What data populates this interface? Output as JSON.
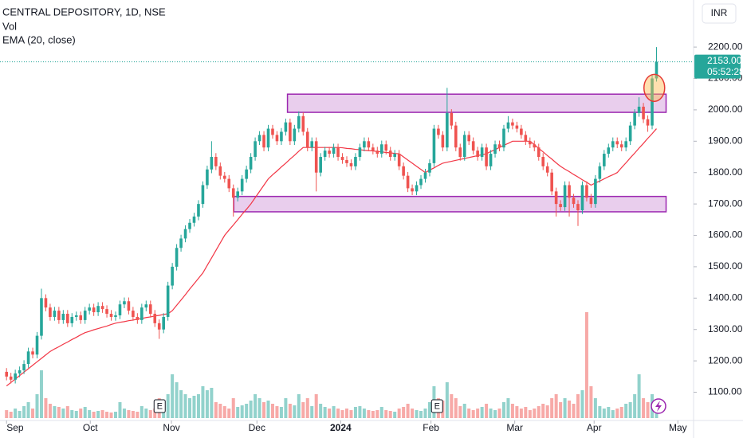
{
  "chart_data": {
    "type": "candlestick",
    "title": "CENTRAL DEPOSITORY, 1D, NSE",
    "currency": "INR",
    "xlim": [
      -1.5,
      157.5
    ],
    "ylim": [
      1010,
      2350
    ],
    "xticks": [
      {
        "value": 0,
        "label": "Sep"
      },
      {
        "value": 19.2,
        "label": "Oct"
      },
      {
        "value": 37.8,
        "label": "Nov"
      },
      {
        "value": 57.4,
        "label": "Dec"
      },
      {
        "value": 76.6,
        "label": "2024"
      },
      {
        "value": 97.3,
        "label": "Feb"
      },
      {
        "value": 116.5,
        "label": "Mar"
      },
      {
        "value": 134.7,
        "label": "Apr"
      },
      {
        "value": 153.9,
        "label": "May"
      }
    ],
    "yticks": [
      {
        "value": 1100,
        "label": "1100.00"
      },
      {
        "value": 1200,
        "label": "1200.00"
      },
      {
        "value": 1300,
        "label": "1300.00"
      },
      {
        "value": 1400,
        "label": "1400.00"
      },
      {
        "value": 1500,
        "label": "1500.00"
      },
      {
        "value": 1600,
        "label": "1600.00"
      },
      {
        "value": 1700,
        "label": "1700.00"
      },
      {
        "value": 1800,
        "label": "1800.00"
      },
      {
        "value": 1900,
        "label": "1900.00"
      },
      {
        "value": 2000,
        "label": "2000.00"
      },
      {
        "value": 2100,
        "label": "2100.00"
      },
      {
        "value": 2200,
        "label": "2200.00"
      }
    ],
    "up_color": "#26a69a",
    "down_color": "#ef5350",
    "candles": {
      "open": [
        1165,
        1150,
        1140,
        1160,
        1170,
        1190,
        1230,
        1220,
        1280,
        1400,
        1370,
        1340,
        1360,
        1330,
        1350,
        1320,
        1340,
        1345,
        1330,
        1360,
        1370,
        1355,
        1375,
        1365,
        1350,
        1340,
        1345,
        1380,
        1390,
        1360,
        1340,
        1330,
        1370,
        1380,
        1350,
        1320,
        1300,
        1340,
        1440,
        1500,
        1560,
        1590,
        1620,
        1640,
        1660,
        1700,
        1760,
        1810,
        1850,
        1820,
        1790,
        1780,
        1750,
        1720,
        1740,
        1780,
        1810,
        1850,
        1900,
        1920,
        1880,
        1940,
        1920,
        1900,
        1930,
        1960,
        1900,
        1940,
        1980,
        1930,
        1880,
        1900,
        1800,
        1850,
        1870,
        1860,
        1880,
        1850,
        1840,
        1830,
        1820,
        1850,
        1880,
        1900,
        1880,
        1870,
        1860,
        1890,
        1870,
        1850,
        1860,
        1820,
        1790,
        1750,
        1740,
        1760,
        1780,
        1800,
        1830,
        1940,
        1920,
        1880,
        1990,
        1950,
        1880,
        1850,
        1920,
        1900,
        1870,
        1850,
        1880,
        1820,
        1860,
        1890,
        1880,
        1940,
        1960,
        1950,
        1940,
        1920,
        1900,
        1890,
        1880,
        1850,
        1820,
        1800,
        1740,
        1700,
        1690,
        1760,
        1720,
        1700,
        1680,
        1760,
        1720,
        1700,
        1780,
        1820,
        1860,
        1880,
        1900,
        1890,
        1880,
        1900,
        1950,
        1990,
        2010,
        1970,
        1950,
        2100
      ],
      "high": [
        1177,
        1162,
        1172,
        1182,
        1202,
        1242,
        1242,
        1292,
        1430,
        1412,
        1382,
        1372,
        1372,
        1362,
        1362,
        1352,
        1357,
        1357,
        1372,
        1382,
        1382,
        1387,
        1387,
        1377,
        1362,
        1357,
        1392,
        1402,
        1402,
        1372,
        1352,
        1382,
        1392,
        1392,
        1362,
        1332,
        1352,
        1452,
        1512,
        1572,
        1602,
        1632,
        1652,
        1672,
        1712,
        1772,
        1822,
        1900,
        1862,
        1832,
        1802,
        1792,
        1762,
        1752,
        1792,
        1822,
        1862,
        1912,
        1932,
        1932,
        1952,
        1952,
        1932,
        1942,
        1972,
        1972,
        1952,
        1995,
        1992,
        1942,
        1912,
        1912,
        1862,
        1882,
        1882,
        1892,
        1892,
        1862,
        1852,
        1842,
        1862,
        1892,
        1912,
        1912,
        1892,
        1882,
        1902,
        1902,
        1882,
        1872,
        1872,
        1832,
        1802,
        1762,
        1772,
        1792,
        1812,
        1842,
        1952,
        1952,
        1932,
        2070,
        2002,
        1962,
        1892,
        1932,
        1932,
        1912,
        1882,
        1892,
        1892,
        1872,
        1902,
        1902,
        1952,
        1980,
        1972,
        1962,
        1952,
        1932,
        1912,
        1902,
        1892,
        1862,
        1832,
        1812,
        1752,
        1712,
        1772,
        1772,
        1732,
        1712,
        1772,
        1772,
        1732,
        1792,
        1832,
        1872,
        1892,
        1912,
        1912,
        1902,
        1912,
        1962,
        2002,
        2040,
        2022,
        1982,
        2112,
        2200
      ],
      "low": [
        1138,
        1128,
        1128,
        1148,
        1158,
        1178,
        1208,
        1208,
        1268,
        1358,
        1328,
        1328,
        1318,
        1318,
        1308,
        1308,
        1328,
        1318,
        1318,
        1348,
        1343,
        1343,
        1353,
        1338,
        1328,
        1328,
        1333,
        1368,
        1348,
        1328,
        1318,
        1318,
        1358,
        1338,
        1308,
        1270,
        1288,
        1328,
        1428,
        1488,
        1548,
        1578,
        1608,
        1628,
        1648,
        1688,
        1748,
        1798,
        1808,
        1778,
        1768,
        1738,
        1660,
        1708,
        1728,
        1768,
        1798,
        1838,
        1888,
        1868,
        1868,
        1908,
        1888,
        1888,
        1918,
        1888,
        1888,
        1928,
        1918,
        1868,
        1868,
        1740,
        1788,
        1838,
        1848,
        1848,
        1838,
        1828,
        1818,
        1808,
        1808,
        1838,
        1868,
        1868,
        1858,
        1848,
        1848,
        1858,
        1838,
        1838,
        1808,
        1778,
        1738,
        1728,
        1728,
        1748,
        1768,
        1788,
        1818,
        1908,
        1868,
        1868,
        1938,
        1868,
        1838,
        1838,
        1888,
        1858,
        1838,
        1838,
        1808,
        1808,
        1848,
        1868,
        1868,
        1928,
        1938,
        1928,
        1908,
        1888,
        1878,
        1868,
        1838,
        1808,
        1788,
        1728,
        1660,
        1678,
        1678,
        1660,
        1688,
        1630,
        1668,
        1708,
        1688,
        1688,
        1768,
        1808,
        1848,
        1868,
        1878,
        1868,
        1868,
        1888,
        1938,
        1978,
        1958,
        1930,
        1938,
        2090
      ],
      "close": [
        1150,
        1140,
        1160,
        1170,
        1190,
        1230,
        1220,
        1280,
        1400,
        1370,
        1340,
        1360,
        1330,
        1350,
        1320,
        1340,
        1345,
        1330,
        1360,
        1370,
        1355,
        1375,
        1365,
        1350,
        1340,
        1345,
        1380,
        1390,
        1360,
        1340,
        1330,
        1370,
        1380,
        1350,
        1320,
        1300,
        1340,
        1440,
        1500,
        1560,
        1590,
        1620,
        1640,
        1660,
        1700,
        1760,
        1810,
        1850,
        1820,
        1790,
        1780,
        1750,
        1720,
        1740,
        1780,
        1810,
        1850,
        1900,
        1920,
        1880,
        1940,
        1920,
        1900,
        1930,
        1960,
        1900,
        1940,
        1980,
        1930,
        1880,
        1900,
        1800,
        1850,
        1870,
        1860,
        1880,
        1850,
        1840,
        1830,
        1820,
        1850,
        1880,
        1900,
        1880,
        1870,
        1860,
        1890,
        1870,
        1850,
        1860,
        1820,
        1790,
        1750,
        1740,
        1760,
        1780,
        1800,
        1830,
        1940,
        1920,
        1880,
        1990,
        1950,
        1880,
        1850,
        1920,
        1900,
        1870,
        1850,
        1880,
        1820,
        1860,
        1890,
        1880,
        1940,
        1960,
        1950,
        1940,
        1920,
        1900,
        1890,
        1880,
        1850,
        1820,
        1800,
        1740,
        1700,
        1690,
        1760,
        1720,
        1700,
        1680,
        1760,
        1720,
        1700,
        1780,
        1820,
        1860,
        1880,
        1900,
        1890,
        1880,
        1900,
        1950,
        1990,
        2010,
        1970,
        1950,
        2100,
        2153
      ]
    },
    "ema": {
      "name": "EMA (20, close)",
      "color": "#f23645",
      "values": [
        1120,
        1131,
        1142,
        1153,
        1164,
        1175,
        1186,
        1197,
        1208,
        1219,
        1230,
        1238,
        1245,
        1253,
        1260,
        1268,
        1275,
        1283,
        1290,
        1294,
        1299,
        1303,
        1307,
        1311,
        1316,
        1320,
        1323,
        1325,
        1328,
        1330,
        1333,
        1335,
        1338,
        1340,
        1343,
        1345,
        1348,
        1350,
        1360,
        1377,
        1394,
        1411,
        1429,
        1446,
        1463,
        1480,
        1504,
        1528,
        1552,
        1576,
        1600,
        1617,
        1633,
        1650,
        1667,
        1683,
        1700,
        1720,
        1740,
        1760,
        1780,
        1793,
        1805,
        1818,
        1830,
        1843,
        1855,
        1868,
        1880,
        1880,
        1880,
        1880,
        1880,
        1880,
        1880,
        1880,
        1880,
        1879,
        1877,
        1876,
        1874,
        1873,
        1871,
        1870,
        1869,
        1867,
        1866,
        1864,
        1863,
        1861,
        1860,
        1850,
        1840,
        1830,
        1820,
        1810,
        1800,
        1808,
        1815,
        1823,
        1830,
        1833,
        1836,
        1839,
        1842,
        1845,
        1848,
        1851,
        1854,
        1857,
        1860,
        1867,
        1873,
        1880,
        1887,
        1893,
        1900,
        1900,
        1900,
        1900,
        1900,
        1889,
        1877,
        1866,
        1854,
        1843,
        1831,
        1820,
        1811,
        1803,
        1794,
        1786,
        1777,
        1769,
        1760,
        1767,
        1773,
        1780,
        1787,
        1793,
        1800,
        1816,
        1831,
        1847,
        1862,
        1878,
        1893,
        1909,
        1924,
        1940
      ]
    },
    "volume": {
      "name": "Vol",
      "lim": [
        0,
        140
      ],
      "values": [
        10,
        8,
        12,
        9,
        15,
        20,
        12,
        30,
        60,
        25,
        18,
        15,
        14,
        12,
        15,
        10,
        9,
        12,
        14,
        10,
        8,
        9,
        10,
        8,
        7,
        8,
        20,
        12,
        10,
        9,
        8,
        15,
        12,
        10,
        12,
        25,
        18,
        30,
        55,
        45,
        35,
        30,
        25,
        28,
        30,
        40,
        35,
        38,
        20,
        18,
        15,
        12,
        25,
        14,
        16,
        18,
        22,
        30,
        25,
        20,
        22,
        18,
        15,
        14,
        25,
        18,
        16,
        30,
        20,
        25,
        15,
        30,
        18,
        14,
        12,
        15,
        12,
        10,
        12,
        10,
        14,
        15,
        12,
        10,
        9,
        10,
        14,
        10,
        9,
        8,
        12,
        14,
        18,
        12,
        10,
        9,
        12,
        20,
        40,
        25,
        22,
        45,
        30,
        25,
        15,
        18,
        12,
        10,
        12,
        14,
        18,
        12,
        10,
        12,
        20,
        25,
        18,
        15,
        12,
        14,
        10,
        12,
        15,
        18,
        16,
        25,
        30,
        20,
        25,
        22,
        18,
        30,
        35,
        133,
        40,
        25,
        15,
        12,
        14,
        10,
        12,
        14,
        18,
        20,
        30,
        55,
        25,
        20,
        30,
        20
      ]
    },
    "last_price": {
      "value": 2153,
      "label": "2153.00",
      "countdown": "05:52:28"
    },
    "zones": [
      {
        "x": [
          64.4,
          151.2
        ],
        "y": [
          1992,
          2050
        ]
      },
      {
        "x": [
          52.1,
          151.2
        ],
        "y": [
          1675,
          1724
        ]
      }
    ],
    "highlight": {
      "x": 148.5,
      "y": 2070
    },
    "events": [
      {
        "x": 35.1,
        "label": "E"
      },
      {
        "x": 98.7,
        "label": "E"
      }
    ]
  }
}
